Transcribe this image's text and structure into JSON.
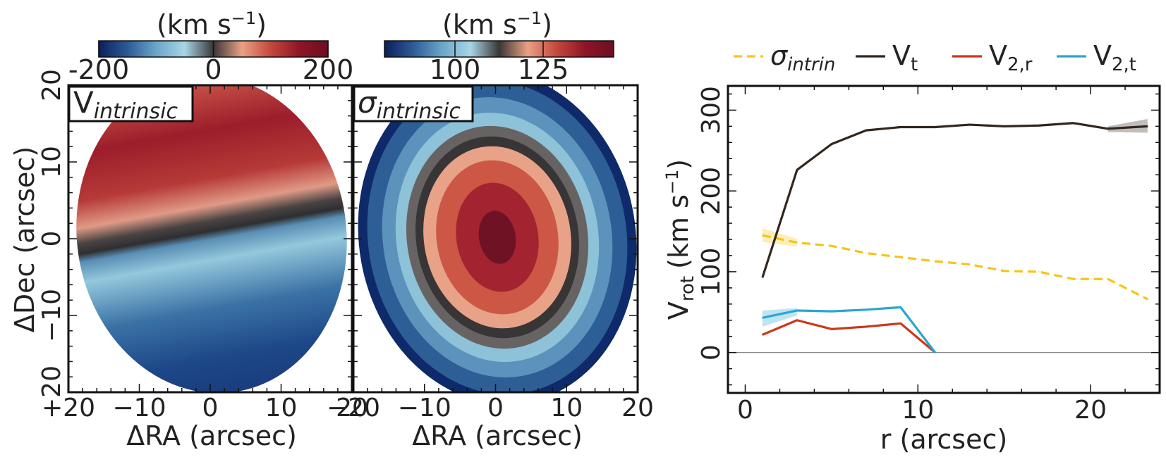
{
  "maps": [
    {
      "label_main": "V",
      "label_sub": "intrinsic",
      "colorbar": {
        "unit_pre": "(km s",
        "unit_exp": "−1",
        "unit_post": ")",
        "ticks": [
          "-200",
          "0",
          "200"
        ],
        "range": [
          -200,
          200
        ],
        "tick_values": [
          -200,
          0,
          200
        ],
        "colors": [
          "#0b1f5c",
          "#2c5a96",
          "#6aa5c8",
          "#a7d6e6",
          "#3a3636",
          "#e9a184",
          "#c5473e",
          "#8f1526",
          "#6b0f23"
        ]
      },
      "xlabel": "ΔRA (arcsec)",
      "ylabel": "ΔDec (arcsec)"
    },
    {
      "label_main": "σ",
      "label_sub": "intrinsic",
      "colorbar": {
        "unit_pre": "(km s",
        "unit_exp": "−1",
        "unit_post": ")",
        "ticks": [
          "100",
          "125"
        ],
        "range": [
          80,
          145
        ],
        "tick_values": [
          100,
          125
        ],
        "colors": [
          "#0b1f5c",
          "#2c5a96",
          "#6aa5c8",
          "#a7d6e6",
          "#3a3636",
          "#e9a184",
          "#c5473e",
          "#8f1526",
          "#6b0f23"
        ]
      },
      "xlabel": "ΔRA (arcsec)",
      "ylabel": ""
    }
  ],
  "map_axes": {
    "xticks": [
      "−20",
      "−10",
      "0",
      "10",
      "20"
    ],
    "yticks": [
      "−20",
      "−10",
      "0",
      "10",
      "20"
    ],
    "range": [
      -20,
      20
    ]
  },
  "chart_data": {
    "type": "line",
    "xlabel": "r (arcsec)",
    "ylabel_main": "V",
    "ylabel_sub": "rot",
    "ylabel_unit_pre": "(km s",
    "ylabel_unit_exp": "−1",
    "ylabel_unit_post": ")",
    "xlim": [
      -1,
      24
    ],
    "ylim": [
      -50,
      330
    ],
    "xticks": [
      0,
      10,
      20
    ],
    "yticks": [
      0,
      100,
      200,
      300
    ],
    "legend_position": "top",
    "series": [
      {
        "name": "σ",
        "name_sub": "intrin",
        "color": "#f5c518",
        "dash": true,
        "x": [
          1,
          3,
          5,
          7,
          9,
          11,
          13,
          15,
          17,
          19,
          21,
          23.3
        ],
        "y": [
          145,
          136,
          132,
          123,
          118,
          113,
          109,
          101,
          100,
          91,
          91,
          66
        ],
        "band_x": [
          1,
          3
        ],
        "band_lo": [
          137,
          131
        ],
        "band_hi": [
          154,
          141
        ]
      },
      {
        "name": "V",
        "name_sub": "t",
        "color": "#33261c",
        "dash": false,
        "x": [
          1,
          3,
          5,
          7,
          9,
          11,
          13,
          15,
          17,
          19,
          21,
          23.3
        ],
        "y": [
          93,
          226,
          258,
          275,
          279,
          279,
          282,
          280,
          281,
          284,
          277,
          280
        ],
        "band_x": [
          21,
          23.3
        ],
        "band_lo": [
          273,
          272
        ],
        "band_hi": [
          280,
          289
        ]
      },
      {
        "name": "V",
        "name_sub": "2,r",
        "color": "#c9391a",
        "dash": false,
        "x": [
          1,
          3,
          5,
          7,
          9,
          11
        ],
        "y": [
          22,
          40,
          29,
          32,
          36,
          0
        ]
      },
      {
        "name": "V",
        "name_sub": "2,t",
        "color": "#2aa6d1",
        "dash": false,
        "x": [
          1,
          3,
          5,
          7,
          9,
          11
        ],
        "y": [
          43,
          52,
          51,
          53,
          56,
          0
        ],
        "band_x": [
          1,
          3
        ],
        "band_lo": [
          32,
          46
        ],
        "band_hi": [
          52,
          55
        ]
      }
    ],
    "hline": 0,
    "hline_color": "#888888"
  }
}
